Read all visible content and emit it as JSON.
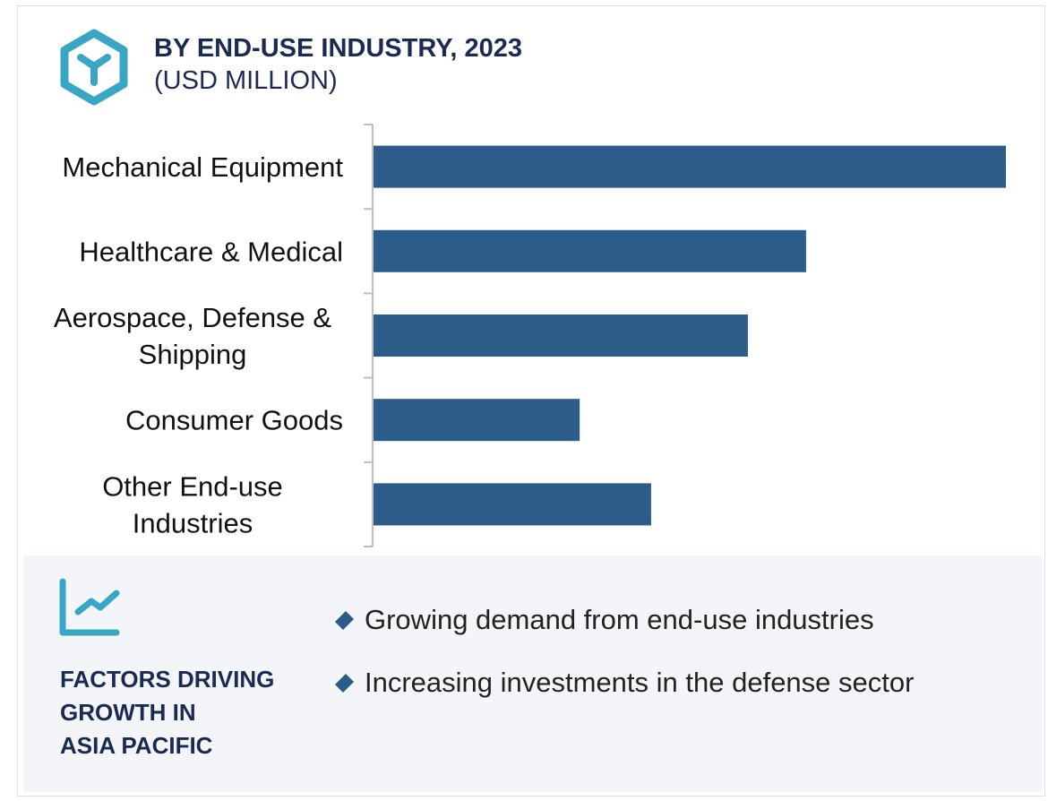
{
  "header": {
    "icon": "hexagon-y-icon",
    "title": "BY END-USE INDUSTRY, 2023",
    "subtitle": "(USD MILLION)"
  },
  "chart_data": {
    "type": "bar",
    "orientation": "horizontal",
    "title": "BY END-USE INDUSTRY, 2023",
    "subtitle": "(USD MILLION)",
    "xlabel": "",
    "ylabel": "",
    "note": "No value axis shown; values are relative bar lengths normalized to largest = 100",
    "categories": [
      [
        "Mechanical Equipment"
      ],
      [
        "Healthcare & Medical"
      ],
      [
        "Aerospace, Defense &",
        "Shipping"
      ],
      [
        "Consumer Goods"
      ],
      [
        "Other End-use",
        "Industries"
      ]
    ],
    "category_names": [
      "Mechanical Equipment",
      "Healthcare & Medical",
      "Aerospace, Defense & Shipping",
      "Consumer Goods",
      "Other End-use Industries"
    ],
    "values": [
      100,
      68.4,
      59.2,
      32.6,
      43.9
    ],
    "xlim": [
      0,
      100
    ],
    "grid": false,
    "legend": "none",
    "bar_color": "#2c5c8a"
  },
  "factors": {
    "icon": "trend-chart-icon",
    "heading_lines": [
      "FACTORS DRIVING",
      "GROWTH IN",
      "ASIA PACIFIC"
    ],
    "bullets": [
      "Growing demand from end-use industries",
      "Increasing investments in the defense sector"
    ]
  },
  "colors": {
    "title": "#1b2a52",
    "accent_icon": "#3aa6c6",
    "bar": "#2c5c8a",
    "panel_bg": "#f3f5f9"
  }
}
